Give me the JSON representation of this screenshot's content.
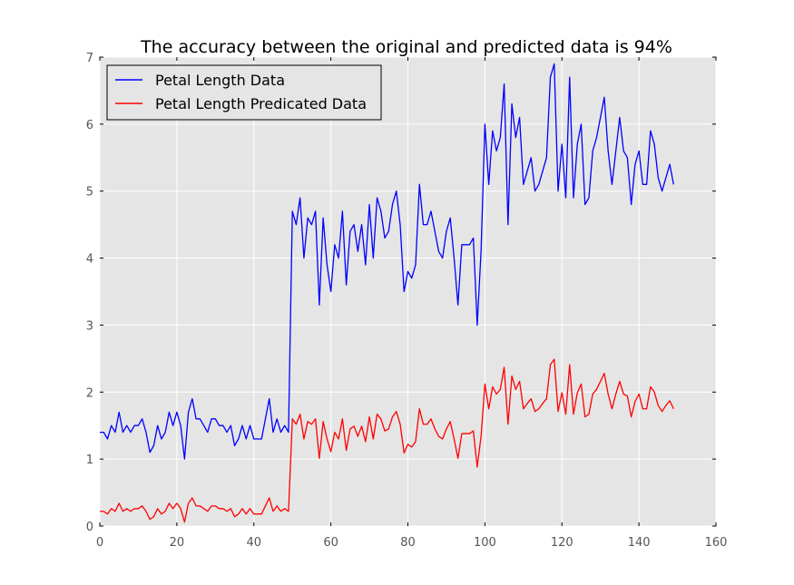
{
  "chart_data": {
    "type": "line",
    "title": "The accuracy between the original and predicted data is 94%",
    "xlabel": "",
    "ylabel": "",
    "xlim": [
      0,
      160
    ],
    "ylim": [
      0,
      7
    ],
    "x_ticks": [
      0,
      20,
      40,
      60,
      80,
      100,
      120,
      140,
      160
    ],
    "y_ticks": [
      0,
      1,
      2,
      3,
      4,
      5,
      6,
      7
    ],
    "grid": true,
    "legend_position": "upper-left",
    "series": [
      {
        "name": "Petal Length Data",
        "color": "#0000ff",
        "values": [
          1.4,
          1.4,
          1.3,
          1.5,
          1.4,
          1.7,
          1.4,
          1.5,
          1.4,
          1.5,
          1.5,
          1.6,
          1.4,
          1.1,
          1.2,
          1.5,
          1.3,
          1.4,
          1.7,
          1.5,
          1.7,
          1.5,
          1.0,
          1.7,
          1.9,
          1.6,
          1.6,
          1.5,
          1.4,
          1.6,
          1.6,
          1.5,
          1.5,
          1.4,
          1.5,
          1.2,
          1.3,
          1.5,
          1.3,
          1.5,
          1.3,
          1.3,
          1.3,
          1.6,
          1.9,
          1.4,
          1.6,
          1.4,
          1.5,
          1.4,
          4.7,
          4.5,
          4.9,
          4.0,
          4.6,
          4.5,
          4.7,
          3.3,
          4.6,
          3.9,
          3.5,
          4.2,
          4.0,
          4.7,
          3.6,
          4.4,
          4.5,
          4.1,
          4.5,
          3.9,
          4.8,
          4.0,
          4.9,
          4.7,
          4.3,
          4.4,
          4.8,
          5.0,
          4.5,
          3.5,
          3.8,
          3.7,
          3.9,
          5.1,
          4.5,
          4.5,
          4.7,
          4.4,
          4.1,
          4.0,
          4.4,
          4.6,
          4.0,
          3.3,
          4.2,
          4.2,
          4.2,
          4.3,
          3.0,
          4.1,
          6.0,
          5.1,
          5.9,
          5.6,
          5.8,
          6.6,
          4.5,
          6.3,
          5.8,
          6.1,
          5.1,
          5.3,
          5.5,
          5.0,
          5.1,
          5.3,
          5.5,
          6.7,
          6.9,
          5.0,
          5.7,
          4.9,
          6.7,
          4.9,
          5.7,
          6.0,
          4.8,
          4.9,
          5.6,
          5.8,
          6.1,
          6.4,
          5.6,
          5.1,
          5.6,
          6.1,
          5.6,
          5.5,
          4.8,
          5.4,
          5.6,
          5.1,
          5.1,
          5.9,
          5.7,
          5.2,
          5.0,
          5.2,
          5.4,
          5.1
        ]
      },
      {
        "name": "Petal Length Predicated Data",
        "color": "#ff0000",
        "values": [
          0.22,
          0.22,
          0.18,
          0.26,
          0.22,
          0.34,
          0.22,
          0.26,
          0.22,
          0.26,
          0.26,
          0.3,
          0.22,
          0.1,
          0.14,
          0.26,
          0.18,
          0.22,
          0.34,
          0.26,
          0.34,
          0.26,
          0.06,
          0.34,
          0.42,
          0.3,
          0.3,
          0.26,
          0.22,
          0.3,
          0.3,
          0.26,
          0.26,
          0.22,
          0.26,
          0.14,
          0.18,
          0.26,
          0.18,
          0.26,
          0.18,
          0.18,
          0.18,
          0.3,
          0.42,
          0.22,
          0.3,
          0.22,
          0.26,
          0.22,
          1.6,
          1.52,
          1.67,
          1.3,
          1.56,
          1.52,
          1.6,
          1.01,
          1.56,
          1.3,
          1.11,
          1.4,
          1.3,
          1.6,
          1.13,
          1.45,
          1.49,
          1.34,
          1.49,
          1.26,
          1.63,
          1.3,
          1.67,
          1.6,
          1.42,
          1.45,
          1.63,
          1.71,
          1.52,
          1.09,
          1.22,
          1.18,
          1.26,
          1.75,
          1.52,
          1.52,
          1.6,
          1.45,
          1.34,
          1.3,
          1.45,
          1.56,
          1.3,
          1.01,
          1.38,
          1.38,
          1.38,
          1.42,
          0.88,
          1.34,
          2.12,
          1.75,
          2.08,
          1.97,
          2.04,
          2.37,
          1.52,
          2.24,
          2.04,
          2.16,
          1.75,
          1.83,
          1.9,
          1.71,
          1.75,
          1.83,
          1.9,
          2.41,
          2.49,
          1.71,
          1.99,
          1.67,
          2.41,
          1.67,
          1.99,
          2.12,
          1.63,
          1.67,
          1.97,
          2.04,
          2.16,
          2.28,
          1.97,
          1.75,
          1.97,
          2.16,
          1.97,
          1.94,
          1.63,
          1.86,
          1.97,
          1.75,
          1.75,
          2.08,
          2.0,
          1.8,
          1.71,
          1.8,
          1.87,
          1.75
        ]
      }
    ]
  }
}
